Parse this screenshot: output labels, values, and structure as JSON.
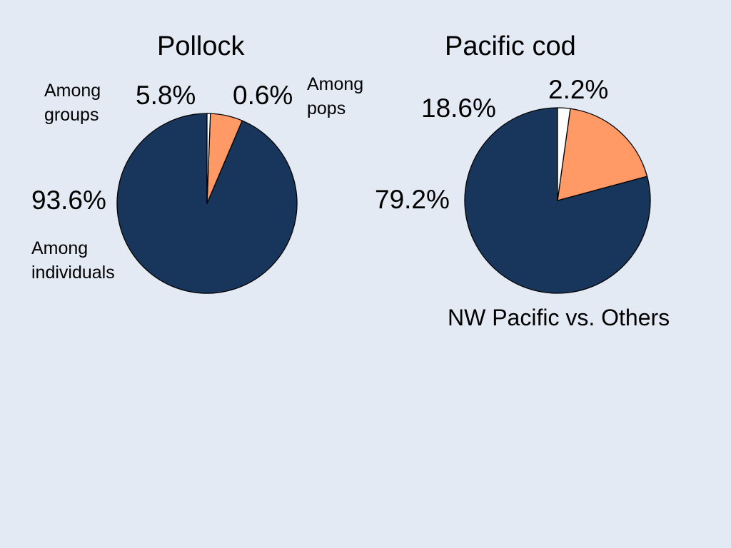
{
  "chart_data": [
    {
      "type": "pie",
      "title": "Pollock",
      "subtitle": "",
      "slices": [
        {
          "label": "Among individuals",
          "value": 93.6,
          "value_label": "93.6%",
          "color": "#18365c"
        },
        {
          "label": "Among groups",
          "value": 5.8,
          "value_label": "5.8%",
          "color": "#ff9966"
        },
        {
          "label": "Among pops",
          "value": 0.6,
          "value_label": "0.6%",
          "color": "#ffffff"
        }
      ]
    },
    {
      "type": "pie",
      "title": "Pacific cod",
      "subtitle": "NW Pacific vs. Others",
      "slices": [
        {
          "label": "",
          "value": 79.2,
          "value_label": "79.2%",
          "color": "#18365c"
        },
        {
          "label": "",
          "value": 18.6,
          "value_label": "18.6%",
          "color": "#ff9966"
        },
        {
          "label": "",
          "value": 2.2,
          "value_label": "2.2%",
          "color": "#ffffff"
        }
      ]
    }
  ],
  "labels": {
    "among_groups_line1": "Among",
    "among_groups_line2": "groups",
    "among_pops_line1": "Among",
    "among_pops_line2": "pops",
    "among_individuals_line1": "Among",
    "among_individuals_line2": "individuals"
  },
  "colors": {
    "background": "#e4eaf4",
    "navy": "#18365c",
    "orange": "#ff9966",
    "white": "#ffffff"
  }
}
